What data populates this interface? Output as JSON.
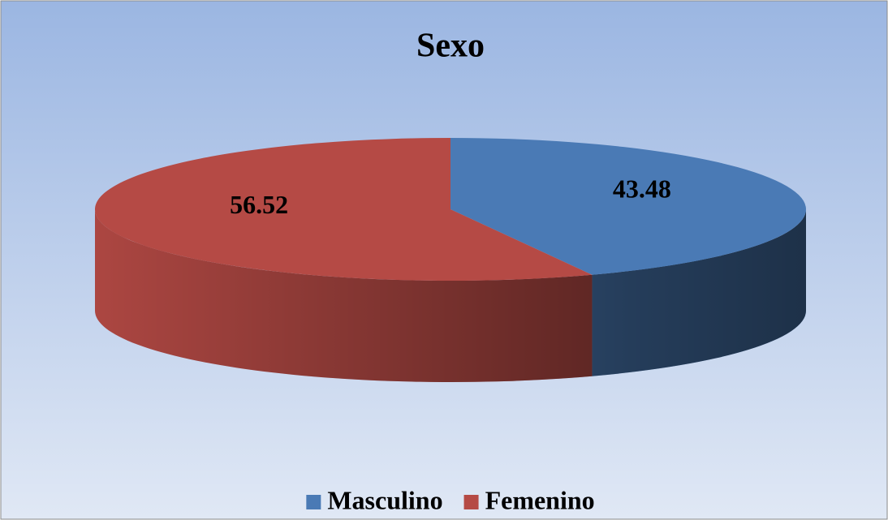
{
  "chart_data": {
    "type": "pie",
    "title": "Sexo",
    "categories": [
      "Masculino",
      "Femenino"
    ],
    "values": [
      43.48,
      56.52
    ],
    "colors": [
      "#4a7ab5",
      "#b54a45"
    ],
    "legend": "bottom"
  }
}
